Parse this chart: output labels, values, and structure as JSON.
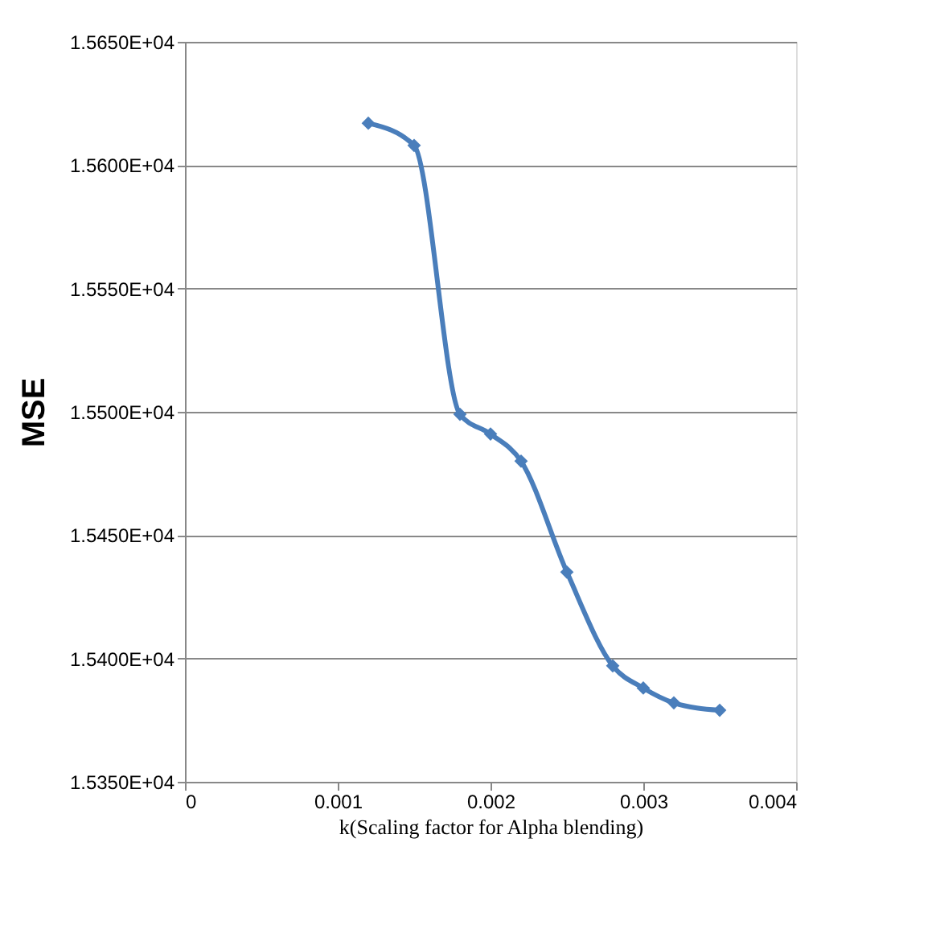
{
  "chart_data": {
    "type": "line",
    "xlabel": "k(Scaling factor for Alpha blending)",
    "ylabel": "MSE",
    "x": [
      0.0012,
      0.0015,
      0.0018,
      0.002,
      0.0022,
      0.0025,
      0.0028,
      0.003,
      0.0032,
      0.0035
    ],
    "series": [
      {
        "color": "#4a7ebb",
        "values": [
          15617,
          15608,
          15499,
          15491,
          15480,
          15435,
          15397,
          15388,
          15382,
          15379
        ]
      }
    ],
    "xlim": [
      0,
      0.004
    ],
    "xticks": [
      0,
      0.001,
      0.002,
      0.003,
      0.004
    ],
    "ylim": [
      15350,
      15650
    ],
    "yticks": [
      {
        "value": 15350,
        "label": "1.5350E+04"
      },
      {
        "value": 15400,
        "label": "1.5400E+04"
      },
      {
        "value": 15450,
        "label": "1.5450E+04"
      },
      {
        "value": 15500,
        "label": "1.5500E+04"
      },
      {
        "value": 15550,
        "label": "1.5550E+04"
      },
      {
        "value": 15600,
        "label": "1.5600E+04"
      },
      {
        "value": 15650,
        "label": "1.5650E+04"
      }
    ],
    "grid": "y",
    "marker": "diamond",
    "line_style": "solid"
  }
}
